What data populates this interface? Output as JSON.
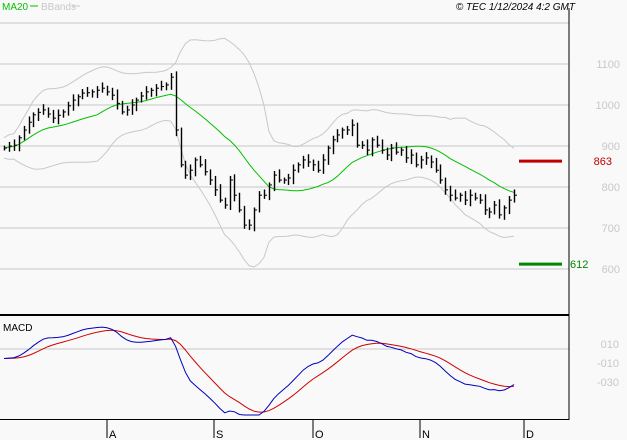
{
  "chart_data": {
    "type": "line",
    "title": "",
    "legend": [
      {
        "name": "MA20",
        "color": "#00c000"
      },
      {
        "name": "BBands",
        "color": "#c8c8c8"
      }
    ],
    "legend_placement": "top-left",
    "copyright": "© TEC 1/12/2024 4:2 GMT",
    "price_axis": {
      "ticks": [
        1100,
        1000,
        900,
        800,
        700,
        600
      ],
      "labels": [
        "1100",
        "1000",
        "900",
        "800",
        "700",
        "600"
      ],
      "ylim": [
        500,
        1200
      ],
      "grid": true
    },
    "closes": [
      895,
      900,
      902,
      920,
      939,
      958,
      976,
      982,
      988,
      978,
      968,
      975,
      983,
      998,
      1012,
      1020,
      1029,
      1030,
      1032,
      1036,
      1041,
      1032,
      1024,
      1004,
      983,
      988,
      1000,
      1012,
      1022,
      1032,
      1036,
      1041,
      1045,
      1049,
      1068,
      939,
      854,
      829,
      841,
      866,
      854,
      837,
      817,
      793,
      768,
      756,
      817,
      780,
      744,
      707,
      707,
      744,
      780,
      780,
      805,
      829,
      817,
      817,
      822,
      841,
      854,
      866,
      861,
      854,
      841,
      866,
      895,
      915,
      927,
      939,
      939,
      951,
      902,
      902,
      890,
      915,
      902,
      890,
      878,
      895,
      885,
      890,
      871,
      878,
      854,
      866,
      871,
      861,
      841,
      817,
      793,
      780,
      773,
      780,
      768,
      780,
      773,
      768,
      744,
      739,
      756,
      732,
      749,
      768,
      780
    ],
    "levels": [
      {
        "value": 863,
        "label": "863",
        "color": "#c00000"
      },
      {
        "value": 612,
        "label": "612",
        "color": "#008800"
      }
    ],
    "macd": {
      "label": "MACD",
      "ticks": [
        10,
        -10,
        -30
      ],
      "tick_labels": [
        "010",
        "-010",
        "-030"
      ],
      "macd_color": "#0000c0",
      "signal_color": "#d00000"
    },
    "x_axis": {
      "months": [
        "A",
        "S",
        "O",
        "N",
        "D"
      ]
    }
  }
}
